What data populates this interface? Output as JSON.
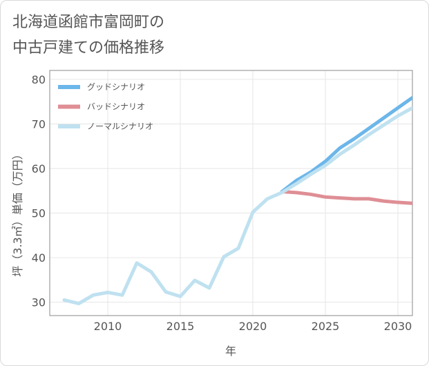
{
  "title_lines": [
    "北海道函館市富岡町の",
    "中古戸建ての価格推移"
  ],
  "chart_data": {
    "type": "line",
    "title": "北海道函館市富岡町の中古戸建ての価格推移",
    "xlabel": "年",
    "ylabel": "坪（3.3㎡）単価（万円）",
    "xlim": [
      2006,
      2031
    ],
    "ylim": [
      27,
      82
    ],
    "xticks": [
      2010,
      2015,
      2020,
      2025,
      2030
    ],
    "yticks": [
      30,
      40,
      50,
      60,
      70,
      80
    ],
    "grid": true,
    "legend_position": "top-left",
    "series": [
      {
        "name": "グッドシナリオ",
        "color": "#6cb6ea",
        "x": [
          2022,
          2023,
          2024,
          2025,
          2026,
          2027,
          2028,
          2029,
          2030,
          2031
        ],
        "y": [
          54.8,
          57.3,
          59.2,
          61.6,
          64.6,
          66.7,
          69.0,
          71.3,
          73.6,
          75.9
        ]
      },
      {
        "name": "バッドシナリオ",
        "color": "#df8e95",
        "x": [
          2022,
          2023,
          2024,
          2025,
          2026,
          2027,
          2028,
          2029,
          2030,
          2031
        ],
        "y": [
          54.8,
          54.6,
          54.2,
          53.6,
          53.4,
          53.2,
          53.2,
          52.7,
          52.4,
          52.2
        ]
      },
      {
        "name": "ノーマルシナリオ",
        "color": "#bfe1f0",
        "x": [
          2007,
          2008,
          2009,
          2010,
          2011,
          2012,
          2013,
          2014,
          2015,
          2016,
          2017,
          2018,
          2019,
          2020,
          2021,
          2022,
          2023,
          2024,
          2025,
          2026,
          2027,
          2028,
          2029,
          2030,
          2031
        ],
        "y": [
          30.5,
          29.7,
          31.6,
          32.2,
          31.6,
          38.8,
          36.8,
          32.3,
          31.3,
          34.9,
          33.2,
          40.2,
          42.1,
          50.2,
          53.2,
          54.6,
          56.6,
          58.7,
          60.7,
          63.2,
          65.3,
          67.6,
          69.7,
          71.8,
          73.6
        ]
      }
    ]
  }
}
